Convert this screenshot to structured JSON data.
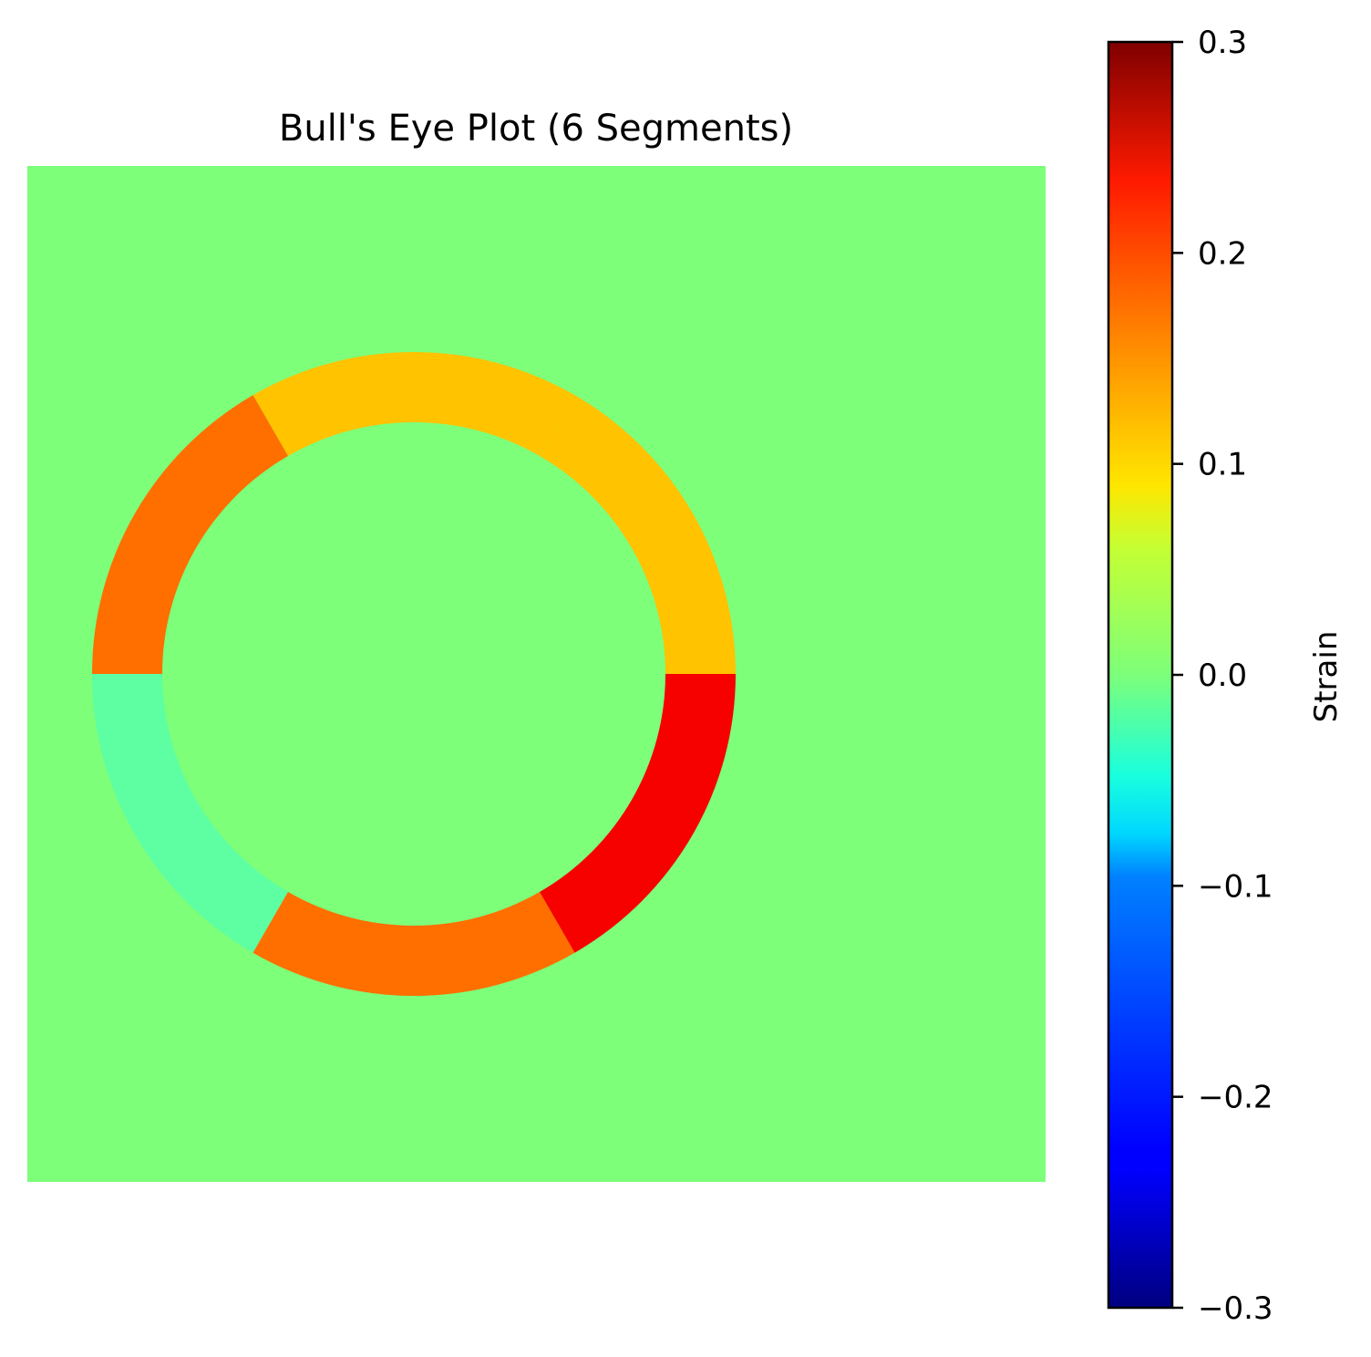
{
  "chart_data": {
    "type": "heatmap",
    "title": "Bull's Eye Plot (6 Segments)",
    "background_value": 0.0,
    "segments": [
      {
        "start_deg": 0,
        "end_deg": 60,
        "value": 0.11
      },
      {
        "start_deg": 60,
        "end_deg": 120,
        "value": 0.11
      },
      {
        "start_deg": 120,
        "end_deg": 180,
        "value": 0.16
      },
      {
        "start_deg": 180,
        "end_deg": 240,
        "value": -0.02
      },
      {
        "start_deg": 240,
        "end_deg": 300,
        "value": 0.16
      },
      {
        "start_deg": 300,
        "end_deg": 360,
        "value": 0.23
      }
    ],
    "colorbar": {
      "label": "Strain",
      "colormap": "jet",
      "vmin": -0.3,
      "vmax": 0.3,
      "ticks": [
        0.3,
        0.2,
        0.1,
        0.0,
        -0.1,
        -0.2,
        -0.3
      ],
      "tick_labels": [
        "0.3",
        "0.2",
        "0.1",
        "0.0",
        "−0.1",
        "−0.2",
        "−0.3"
      ]
    },
    "axes_visible": false
  }
}
